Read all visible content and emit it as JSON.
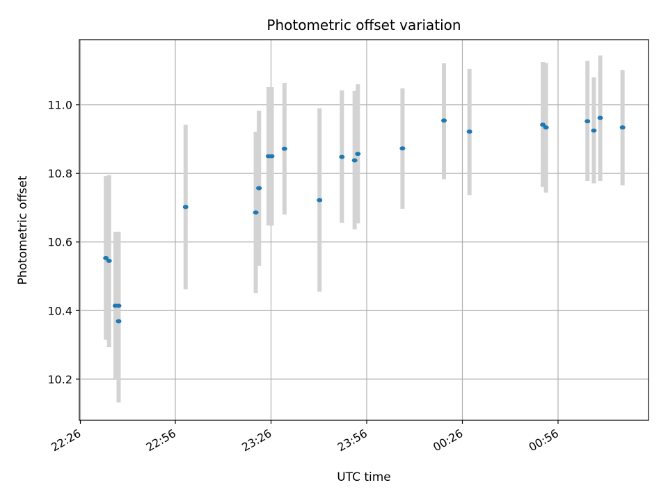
{
  "chart_data": {
    "type": "scatter",
    "title": "Photometric offset variation",
    "xlabel": "UTC time",
    "ylabel": "Photometric offset",
    "x_tick_labels": [
      "22:26",
      "22:56",
      "23:26",
      "23:56",
      "00:26",
      "00:56"
    ],
    "y_ticks": [
      10.2,
      10.4,
      10.6,
      10.8,
      11.0
    ],
    "y_tick_labels": [
      "10.2",
      "10.4",
      "10.6",
      "10.8",
      "11.0"
    ],
    "ylim": [
      10.08,
      11.19
    ],
    "grid": true,
    "colors": {
      "point": "#1f77b4",
      "errorbar": "#d3d3d3",
      "grid": "#b0b0b0",
      "axis": "#000000"
    },
    "points": [
      {
        "x": "22:34",
        "y": 10.553,
        "err_low": 10.315,
        "err_high": 10.792
      },
      {
        "x": "22:35",
        "y": 10.545,
        "err_low": 10.293,
        "err_high": 10.795
      },
      {
        "x": "22:37",
        "y": 10.414,
        "err_low": 10.198,
        "err_high": 10.63
      },
      {
        "x": "22:38",
        "y": 10.414,
        "err_low": 10.193,
        "err_high": 10.63
      },
      {
        "x": "22:38",
        "y": 10.369,
        "err_low": 10.132,
        "err_high": 10.604
      },
      {
        "x": "22:59",
        "y": 10.702,
        "err_low": 10.462,
        "err_high": 10.942
      },
      {
        "x": "23:21",
        "y": 10.686,
        "err_low": 10.451,
        "err_high": 10.921
      },
      {
        "x": "23:22",
        "y": 10.757,
        "err_low": 10.531,
        "err_high": 10.983
      },
      {
        "x": "23:22",
        "y": 10.757,
        "err_low": 10.531,
        "err_high": 10.983
      },
      {
        "x": "23:25",
        "y": 10.85,
        "err_low": 10.648,
        "err_high": 11.052
      },
      {
        "x": "23:26",
        "y": 10.85,
        "err_low": 10.648,
        "err_high": 11.052
      },
      {
        "x": "23:30",
        "y": 10.872,
        "err_low": 10.68,
        "err_high": 11.064
      },
      {
        "x": "23:41",
        "y": 10.722,
        "err_low": 10.455,
        "err_high": 10.99
      },
      {
        "x": "23:48",
        "y": 10.848,
        "err_low": 10.656,
        "err_high": 11.042
      },
      {
        "x": "23:52",
        "y": 10.838,
        "err_low": 10.637,
        "err_high": 11.04
      },
      {
        "x": "23:53",
        "y": 10.857,
        "err_low": 10.654,
        "err_high": 11.06
      },
      {
        "x": "00:07",
        "y": 10.873,
        "err_low": 10.697,
        "err_high": 11.048
      },
      {
        "x": "00:20",
        "y": 10.954,
        "err_low": 10.783,
        "err_high": 11.121
      },
      {
        "x": "00:28",
        "y": 10.922,
        "err_low": 10.737,
        "err_high": 11.105
      },
      {
        "x": "00:51",
        "y": 10.942,
        "err_low": 10.76,
        "err_high": 11.125
      },
      {
        "x": "00:52",
        "y": 10.934,
        "err_low": 10.744,
        "err_high": 11.122
      },
      {
        "x": "01:05",
        "y": 10.952,
        "err_low": 10.778,
        "err_high": 11.128
      },
      {
        "x": "01:07",
        "y": 10.925,
        "err_low": 10.771,
        "err_high": 11.08
      },
      {
        "x": "01:09",
        "y": 10.962,
        "err_low": 10.778,
        "err_high": 11.144
      },
      {
        "x": "01:16",
        "y": 10.934,
        "err_low": 10.765,
        "err_high": 11.101
      }
    ]
  }
}
